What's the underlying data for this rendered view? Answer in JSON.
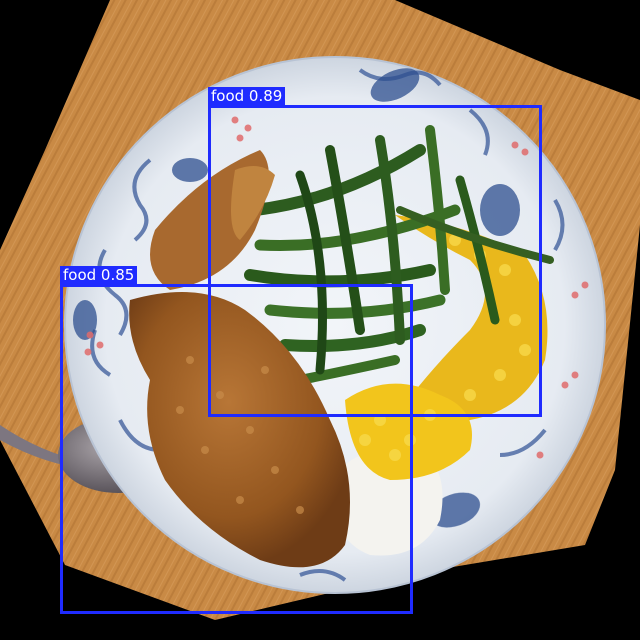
{
  "detections": [
    {
      "label": "food 0.89",
      "class": "food",
      "confidence": 0.89
    },
    {
      "label": "food 0.85",
      "class": "food",
      "confidence": 0.85
    }
  ],
  "colors": {
    "background": "#000000",
    "box": "#1f2bff",
    "board": "#c98a45",
    "plate": "#e9edf3",
    "greens": "#2f5f21",
    "corn": "#f2c51c",
    "cutlet": "#9a5a25"
  }
}
